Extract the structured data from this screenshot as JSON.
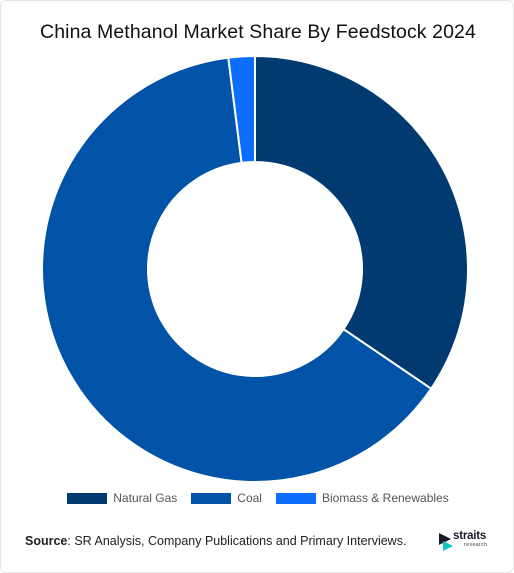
{
  "chart_data": {
    "type": "pie",
    "title": "China Methanol Market Share By Feedstock 2024",
    "donut": true,
    "slices": [
      {
        "label": "Natural Gas",
        "value": 34.5,
        "color": "#003a70"
      },
      {
        "label": "Coal",
        "value": 63.5,
        "color": "#0053a6"
      },
      {
        "label": "Biomass & Renewables",
        "value": 2.0,
        "color": "#0d6efd"
      }
    ],
    "legend_position": "bottom"
  },
  "source": {
    "label": "Source",
    "text": ": SR Analysis, Company Publications and Primary Interviews."
  },
  "logo": {
    "name": "straits",
    "sub": "research",
    "icon": "straits-logo-icon"
  }
}
